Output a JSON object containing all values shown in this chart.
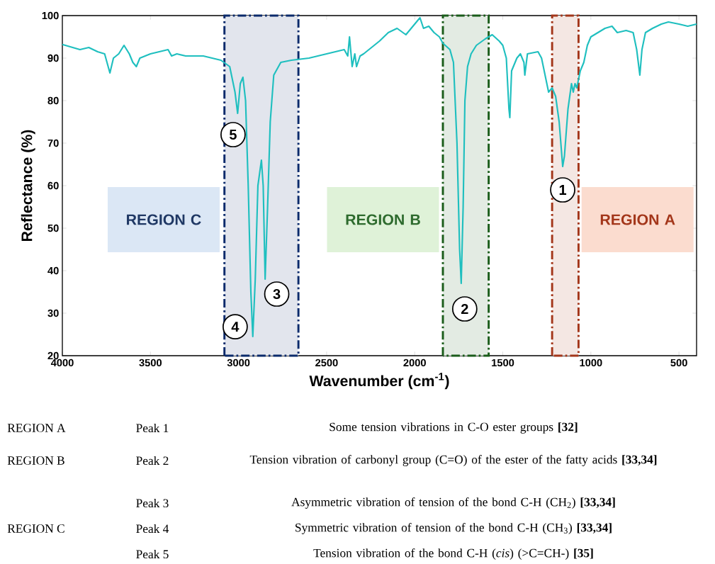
{
  "chart_data": {
    "type": "line",
    "xlabel": "Wavenumber (cm$^{-1}$)",
    "ylabel": "Reflectance (%)",
    "xlim": [
      4000,
      400
    ],
    "ylim": [
      20,
      100
    ],
    "xticks": [
      4000,
      3500,
      3000,
      2500,
      2000,
      1500,
      1000,
      500
    ],
    "yticks": [
      20,
      30,
      40,
      50,
      60,
      70,
      80,
      90,
      100
    ],
    "series": [
      {
        "color": "#1fbfbf",
        "x": [
          4000,
          3900,
          3850,
          3800,
          3760,
          3730,
          3710,
          3680,
          3650,
          3620,
          3600,
          3580,
          3560,
          3500,
          3450,
          3400,
          3380,
          3350,
          3300,
          3200,
          3100,
          3050,
          3020,
          3005,
          2990,
          2975,
          2960,
          2945,
          2930,
          2919,
          2905,
          2890,
          2870,
          2860,
          2849,
          2835,
          2820,
          2800,
          2760,
          2700,
          2600,
          2500,
          2400,
          2380,
          2370,
          2355,
          2340,
          2330,
          2310,
          2290,
          2200,
          2150,
          2100,
          2050,
          2000,
          1970,
          1950,
          1920,
          1890,
          1860,
          1840,
          1800,
          1780,
          1760,
          1745,
          1736,
          1725,
          1715,
          1700,
          1680,
          1650,
          1600,
          1560,
          1520,
          1500,
          1480,
          1465,
          1460,
          1450,
          1420,
          1400,
          1380,
          1375,
          1360,
          1300,
          1280,
          1260,
          1240,
          1220,
          1200,
          1180,
          1160,
          1150,
          1130,
          1110,
          1100,
          1090,
          1080,
          1060,
          1040,
          1020,
          1000,
          960,
          920,
          880,
          850,
          800,
          760,
          740,
          722,
          710,
          690,
          650,
          600,
          560,
          500,
          450,
          400
        ],
        "values": [
          93.2,
          92,
          92.5,
          91.5,
          91,
          86.5,
          90,
          91,
          93,
          91,
          89,
          88,
          90,
          91,
          91.5,
          92,
          90.5,
          91,
          90.5,
          90.5,
          89.5,
          88,
          82,
          77,
          84,
          85.5,
          80,
          60,
          35,
          24.5,
          38,
          60,
          66,
          60,
          38,
          55,
          75,
          86,
          89,
          89.5,
          90,
          91,
          92,
          90.5,
          95,
          88,
          91,
          88,
          90.5,
          91,
          94,
          96,
          97,
          95.5,
          98,
          99.5,
          97,
          97.5,
          96,
          95,
          93.5,
          92,
          89,
          70,
          45,
          37,
          55,
          80,
          88,
          91,
          93,
          94.5,
          95.5,
          94,
          93,
          90,
          78,
          76,
          87,
          90,
          91,
          89,
          86,
          91,
          91.5,
          90,
          86,
          82,
          83,
          81,
          75,
          64.5,
          67,
          78,
          84,
          82,
          84,
          83,
          87,
          89,
          93,
          95,
          96,
          97,
          97.5,
          96,
          96.5,
          96,
          92,
          86,
          92,
          96,
          97,
          98,
          98.5,
          98,
          97.5,
          98
        ]
      }
    ],
    "bands": [
      {
        "axis": "x",
        "from": 3080,
        "to": 2660,
        "color": "#0a2a6b"
      },
      {
        "axis": "x",
        "from": 1840,
        "to": 1580,
        "color": "#1a5c1a"
      },
      {
        "axis": "x",
        "from": 1220,
        "to": 1070,
        "color": "#a3361a"
      }
    ],
    "annotations": [
      "REGION C",
      "REGION B",
      "REGION A",
      {
        "text": "1",
        "x": 1160,
        "y": 64.5
      },
      {
        "text": "2",
        "x": 1736,
        "y": 37
      },
      {
        "text": "3",
        "x": 2849,
        "y": 38
      },
      {
        "text": "4",
        "x": 2919,
        "y": 24.5
      },
      {
        "text": "5",
        "x": 3005,
        "y": 77
      },
      "REGION A",
      "Peak 1",
      "Some tension vibrations in C-O ester groups **[32]**",
      "REGION B",
      "Peak 2",
      "Tension vibration of carbonyl group (C=O) of the ester of the fatty acids **[33,34]**",
      "Peak 3",
      "Asymmetric vibration of tension of the bond C-H (CH$_{2}$) **[33,34]**",
      "REGION C",
      "Peak 4",
      "Symmetric vibration of tension of the bond C-H (CH$_{3}$) **[33,34]**",
      "Peak 5",
      "Tension vibration of the bond C-H (*cis*) (>C=CH-) **[35]**"
    ]
  }
}
